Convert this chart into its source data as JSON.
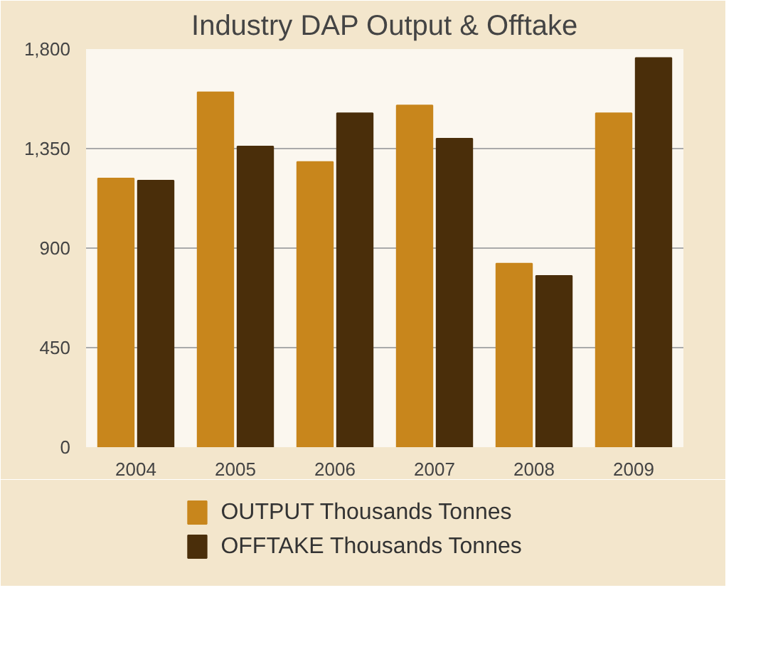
{
  "chart_data": {
    "type": "bar",
    "title": "Industry DAP Output & Offtake",
    "categories": [
      "2004",
      "2005",
      "2006",
      "2007",
      "2008",
      "2009"
    ],
    "series": [
      {
        "name": "OUTPUT Thousands Tonnes",
        "color": "#c8861c",
        "values": [
          1215,
          1605,
          1290,
          1545,
          830,
          1510
        ]
      },
      {
        "name": "OFFTAKE Thousands Tonnes",
        "color": "#4a2e0a",
        "values": [
          1205,
          1360,
          1510,
          1395,
          775,
          1760
        ]
      }
    ],
    "ylim": [
      0,
      1800
    ],
    "yticks": [
      {
        "value": 0,
        "label": "0"
      },
      {
        "value": 450,
        "label": "450"
      },
      {
        "value": 900,
        "label": "900"
      },
      {
        "value": 1350,
        "label": "1,350"
      },
      {
        "value": 1800,
        "label": "1,800"
      }
    ],
    "grid": "y",
    "legend": "bottom"
  }
}
